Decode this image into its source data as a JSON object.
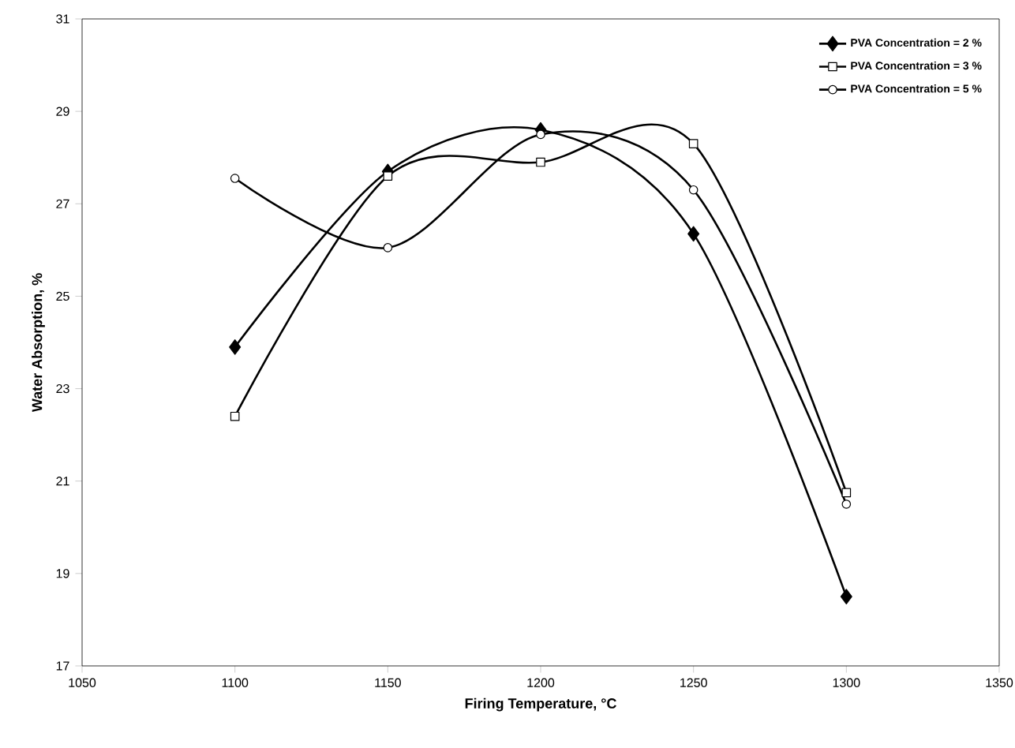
{
  "chart_data": {
    "type": "line",
    "xlabel": "Firing Temperature, °C",
    "ylabel": "Water Absorption, %",
    "x": [
      1100,
      1150,
      1200,
      1250,
      1300
    ],
    "series": [
      {
        "name": "PVA Concentration = 2 %",
        "color": "#000000",
        "marker": "diamond",
        "values": [
          23.9,
          27.7,
          28.6,
          26.35,
          18.5
        ]
      },
      {
        "name": "PVA Concentration = 3 %",
        "color": "#000000",
        "marker": "square",
        "values": [
          22.4,
          27.6,
          27.9,
          28.3,
          20.75
        ]
      },
      {
        "name": "PVA Concentration = 5 %",
        "color": "#000000",
        "marker": "circle",
        "values": [
          27.55,
          26.05,
          28.5,
          27.3,
          20.5
        ]
      }
    ],
    "xlim": [
      1050,
      1350
    ],
    "xticks": [
      1050,
      1100,
      1150,
      1200,
      1250,
      1300,
      1350
    ],
    "ylim": [
      17,
      31
    ],
    "yticks": [
      17,
      19,
      21,
      23,
      25,
      27,
      29,
      31
    ],
    "grid": false,
    "legend": "top right",
    "line_style": "solid"
  }
}
